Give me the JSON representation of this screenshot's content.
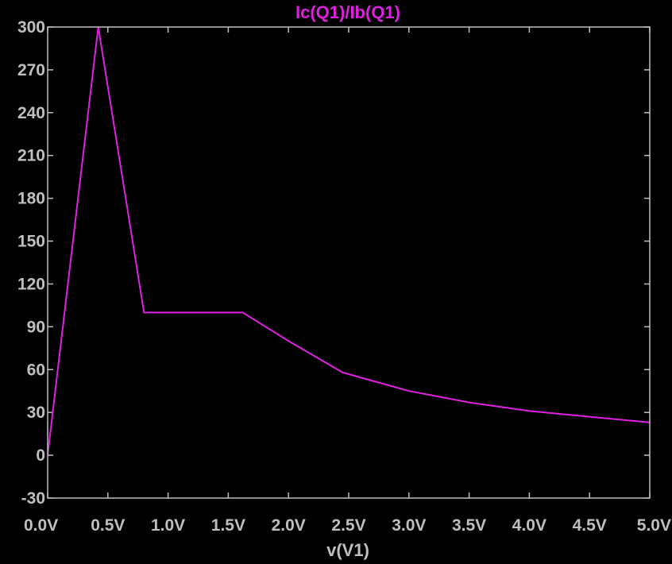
{
  "chart_data": {
    "type": "line",
    "title": "Ic(Q1)/Ib(Q1)",
    "xlabel": "v(V1)",
    "ylabel": "",
    "xlim": [
      0,
      5
    ],
    "ylim": [
      -30,
      300
    ],
    "x_ticks": [
      0,
      0.5,
      1.0,
      1.5,
      2.0,
      2.5,
      3.0,
      3.5,
      4.0,
      4.5,
      5.0
    ],
    "x_tick_labels": [
      "0.0V",
      "0.5V",
      "1.0V",
      "1.5V",
      "2.0V",
      "2.5V",
      "3.0V",
      "3.5V",
      "4.0V",
      "4.5V",
      "5.0V"
    ],
    "y_ticks": [
      -30,
      0,
      30,
      60,
      90,
      120,
      150,
      180,
      210,
      240,
      270,
      300
    ],
    "y_tick_labels": [
      "-30",
      "0",
      "30",
      "60",
      "90",
      "120",
      "150",
      "180",
      "210",
      "240",
      "270",
      "300"
    ],
    "grid": false,
    "colors": {
      "background": "#000000",
      "frame": "#bfbfbf",
      "trace": "#e020e0"
    },
    "series": [
      {
        "name": "Ic(Q1)/Ib(Q1)",
        "x": [
          0.0,
          0.42,
          0.8,
          1.2,
          1.62,
          2.0,
          2.45,
          3.0,
          3.5,
          4.0,
          4.5,
          5.0
        ],
        "y": [
          0,
          300,
          100,
          100,
          100,
          80,
          58,
          45,
          37,
          31,
          27,
          23
        ]
      }
    ]
  }
}
